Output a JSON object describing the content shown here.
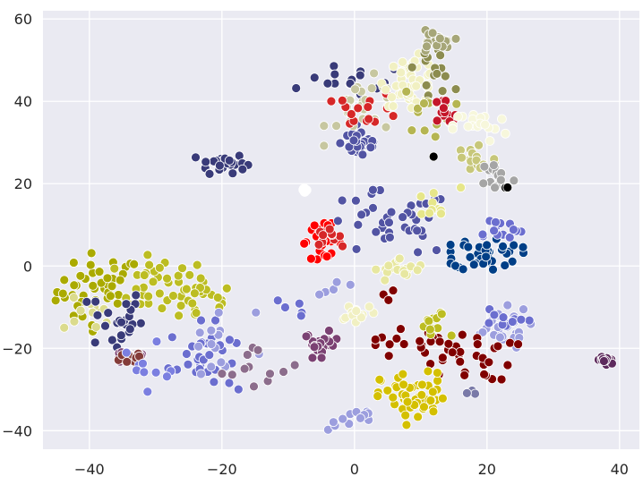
{
  "chart_data": {
    "type": "scatter",
    "title": "",
    "xlabel": "",
    "ylabel": "",
    "xlim": [
      -47,
      43
    ],
    "ylim": [
      -44.5,
      62
    ],
    "x_ticks": [
      -40,
      -20,
      0,
      20,
      40
    ],
    "y_ticks": [
      -40,
      -20,
      0,
      20,
      40,
      60
    ],
    "x_tick_labels": [
      "−40",
      "−20",
      "0",
      "20",
      "40"
    ],
    "y_tick_labels": [
      "−40",
      "−20",
      "0",
      "20",
      "40",
      "60"
    ],
    "grid": true,
    "background": "#eaeaf2",
    "grid_color": "#ffffff",
    "marker_edge_color": "#ffffff",
    "clusters": [
      {
        "color": "#aaaa00",
        "cx": -38.5,
        "cy": -6,
        "sx": 3.2,
        "sy": 4.5,
        "n": 45
      },
      {
        "color": "#bcbd22",
        "cx": -29,
        "cy": -5,
        "sx": 3.5,
        "sy": 3.5,
        "n": 35
      },
      {
        "color": "#bcbd22",
        "cx": -23,
        "cy": -8,
        "sx": 2.5,
        "sy": 3,
        "n": 18
      },
      {
        "color": "#dbdb8d",
        "cx": -40,
        "cy": -12,
        "sx": 2,
        "sy": 2,
        "n": 10
      },
      {
        "color": "#393b79",
        "cx": -36,
        "cy": -13,
        "sx": 2,
        "sy": 4,
        "n": 25
      },
      {
        "color": "#7b4173",
        "cx": -34,
        "cy": -22,
        "sx": 1.5,
        "sy": 1,
        "n": 22
      },
      {
        "color": "#843c39",
        "cx": -33,
        "cy": -22,
        "sx": 1.2,
        "sy": 1,
        "n": 10
      },
      {
        "color": "#393b79",
        "cx": -20,
        "cy": 25,
        "sx": 1.8,
        "sy": 1.2,
        "n": 28
      },
      {
        "color": "#6b6ecf",
        "cx": -23,
        "cy": -22,
        "sx": 2.5,
        "sy": 4,
        "n": 30
      },
      {
        "color": "#9c9ede",
        "cx": -21,
        "cy": -20,
        "sx": 3,
        "sy": 5,
        "n": 15
      },
      {
        "color": "#7b7fe0",
        "cx": -30,
        "cy": -22,
        "sx": 2,
        "sy": 4,
        "n": 10
      },
      {
        "color": "#8c6d8c",
        "cx": -14,
        "cy": -25,
        "sx": 3,
        "sy": 3,
        "n": 12
      },
      {
        "color": "#7b4173",
        "cx": -5,
        "cy": -19,
        "sx": 1.3,
        "sy": 1.5,
        "n": 25
      },
      {
        "color": "#ff0000",
        "cx": -5,
        "cy": 6,
        "sx": 1.6,
        "sy": 2,
        "n": 28
      },
      {
        "color": "#d62728",
        "cx": -4,
        "cy": 7,
        "sx": 1,
        "sy": 1,
        "n": 10
      },
      {
        "color": "#ffffff",
        "cx": -7.5,
        "cy": 18,
        "sx": 0.4,
        "sy": 0.5,
        "n": 6
      },
      {
        "color": "#9c9ede",
        "cx": 0,
        "cy": -37,
        "sx": 2,
        "sy": 1.5,
        "n": 12
      },
      {
        "color": "#5254a3",
        "cx": 1,
        "cy": 30,
        "sx": 1.5,
        "sy": 2,
        "n": 35
      },
      {
        "color": "#5254a3",
        "cx": 5,
        "cy": 10,
        "sx": 5,
        "sy": 4,
        "n": 40
      },
      {
        "color": "#393b79",
        "cx": 0,
        "cy": 45,
        "sx": 4,
        "sy": 2,
        "n": 15
      },
      {
        "color": "#c7c7a0",
        "cx": 2,
        "cy": 38,
        "sx": 3,
        "sy": 4,
        "n": 30
      },
      {
        "color": "#d62728",
        "cx": 2,
        "cy": 38,
        "sx": 2.5,
        "sy": 2,
        "n": 15
      },
      {
        "color": "#f1f0c2",
        "cx": 8.5,
        "cy": 45,
        "sx": 2,
        "sy": 3,
        "n": 45
      },
      {
        "color": "#8c8c4f",
        "cx": 12,
        "cy": 48,
        "sx": 1.5,
        "sy": 3,
        "n": 15
      },
      {
        "color": "#a6a678",
        "cx": 12,
        "cy": 54,
        "sx": 1.5,
        "sy": 1.5,
        "n": 18
      },
      {
        "color": "#b5b552",
        "cx": 11,
        "cy": 38,
        "sx": 2,
        "sy": 3,
        "n": 15
      },
      {
        "color": "#e6e68a",
        "cx": 12,
        "cy": 15,
        "sx": 2,
        "sy": 2,
        "n": 10
      },
      {
        "color": "#c4162a",
        "cx": 13,
        "cy": 36,
        "sx": 1.5,
        "sy": 2.5,
        "n": 12
      },
      {
        "color": "#f7f7dc",
        "cx": 19,
        "cy": 34,
        "sx": 2,
        "sy": 2,
        "n": 20
      },
      {
        "color": "#c7c77a",
        "cx": 18,
        "cy": 26,
        "sx": 1.8,
        "sy": 2.5,
        "n": 18
      },
      {
        "color": "#a5a5a5",
        "cx": 21.5,
        "cy": 22,
        "sx": 1.2,
        "sy": 2,
        "n": 15
      },
      {
        "color": "#000000",
        "cx": 23,
        "cy": 19,
        "sx": 0.3,
        "sy": 0.1,
        "n": 2
      },
      {
        "color": "#000000",
        "cx": 12,
        "cy": 26.5,
        "sx": 0.1,
        "sy": 0.1,
        "n": 1
      },
      {
        "color": "#f1f0c2",
        "cx": 0.5,
        "cy": -11,
        "sx": 1.5,
        "sy": 1.2,
        "n": 15
      },
      {
        "color": "#e7e7a0",
        "cx": 7,
        "cy": -1,
        "sx": 2,
        "sy": 1.5,
        "n": 20
      },
      {
        "color": "#003f87",
        "cx": 20,
        "cy": 3,
        "sx": 2.5,
        "sy": 2,
        "n": 40
      },
      {
        "color": "#6b6ecf",
        "cx": 21.5,
        "cy": 9,
        "sx": 2,
        "sy": 1.5,
        "n": 15
      },
      {
        "color": "#9c9ede",
        "cx": 21.5,
        "cy": -15,
        "sx": 2.5,
        "sy": 2.5,
        "n": 28
      },
      {
        "color": "#6b6ecf",
        "cx": 22,
        "cy": -14,
        "sx": 2,
        "sy": 2,
        "n": 10
      },
      {
        "color": "#800000",
        "cx": 17,
        "cy": -22,
        "sx": 3.5,
        "sy": 3,
        "n": 28
      },
      {
        "color": "#800000",
        "cx": 9,
        "cy": -19,
        "sx": 3,
        "sy": 3,
        "n": 20
      },
      {
        "color": "#d4c000",
        "cx": 9,
        "cy": -32,
        "sx": 2.5,
        "sy": 3,
        "n": 55
      },
      {
        "color": "#bcbd22",
        "cx": 12,
        "cy": -15,
        "sx": 1.2,
        "sy": 2,
        "n": 12
      },
      {
        "color": "#5d2a5d",
        "cx": 38,
        "cy": -23,
        "sx": 0.8,
        "sy": 0.6,
        "n": 16
      },
      {
        "color": "#7a7aa8",
        "cx": 18,
        "cy": -30,
        "sx": 1,
        "sy": 1,
        "n": 4
      },
      {
        "color": "#6b6ecf",
        "cx": -10,
        "cy": -10,
        "sx": 1.5,
        "sy": 1.5,
        "n": 5
      },
      {
        "color": "#9c9ede",
        "cx": -2,
        "cy": -5,
        "sx": 1.5,
        "sy": 1.5,
        "n": 5
      },
      {
        "color": "#800000",
        "cx": 5,
        "cy": -8,
        "sx": 0.5,
        "sy": 1,
        "n": 3
      }
    ]
  }
}
